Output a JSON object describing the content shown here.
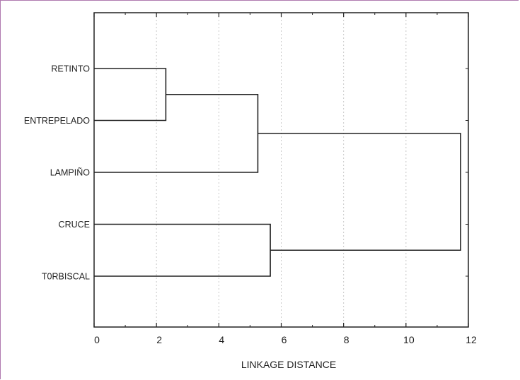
{
  "chart_data": {
    "type": "dendrogram",
    "orientation": "horizontal",
    "title": "",
    "xlabel": "LINKAGE DISTANCE",
    "ylabel": "",
    "xlim": [
      0,
      12
    ],
    "xticks": [
      0,
      2,
      4,
      6,
      8,
      10,
      12
    ],
    "grid": true,
    "leaves": [
      "RETINTO",
      "ENTREPELADO",
      "LAMPIÑO",
      "CRUCE",
      "T0RBISCAL"
    ],
    "merges": [
      {
        "left": "RETINTO",
        "right": "ENTREPELADO",
        "distance": 2.3
      },
      {
        "left": "RETINTO+ENTREPELADO",
        "right": "LAMPIÑO",
        "distance": 5.25
      },
      {
        "left": "CRUCE",
        "right": "T0RBISCAL",
        "distance": 5.65
      },
      {
        "left": "RETINTO+ENTREPELADO+LAMPIÑO",
        "right": "CRUCE+T0RBISCAL",
        "distance": 11.75
      }
    ]
  }
}
